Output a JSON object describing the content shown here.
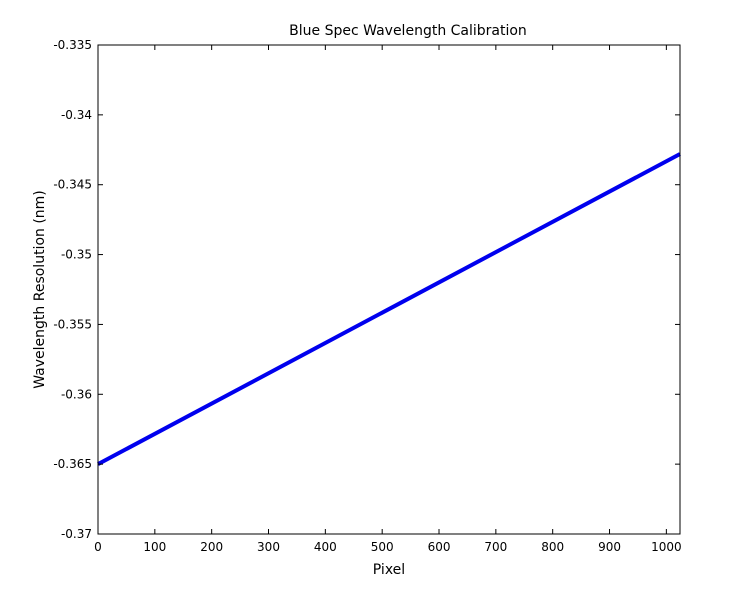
{
  "chart_data": {
    "type": "line",
    "title": "Blue Spec Wavelength Calibration",
    "xlabel": "Pixel",
    "ylabel": "Wavelength Resolution (nm)",
    "xlim": [
      0,
      1024
    ],
    "ylim": [
      -0.37,
      -0.335
    ],
    "xticks": [
      0,
      100,
      200,
      300,
      400,
      500,
      600,
      700,
      800,
      900,
      1000
    ],
    "xtick_labels": [
      "0",
      "100",
      "200",
      "300",
      "400",
      "500",
      "600",
      "700",
      "800",
      "900",
      "1000"
    ],
    "yticks": [
      -0.37,
      -0.365,
      -0.36,
      -0.355,
      -0.35,
      -0.345,
      -0.34,
      -0.335
    ],
    "ytick_labels": [
      "-0.37",
      "-0.365",
      "-0.36",
      "-0.355",
      "-0.35",
      "-0.345",
      "-0.34",
      "-0.335"
    ],
    "grid": false,
    "series": [
      {
        "color": "#0000ee",
        "x": [
          0,
          1024
        ],
        "y": [
          -0.365,
          -0.3428
        ]
      }
    ]
  }
}
